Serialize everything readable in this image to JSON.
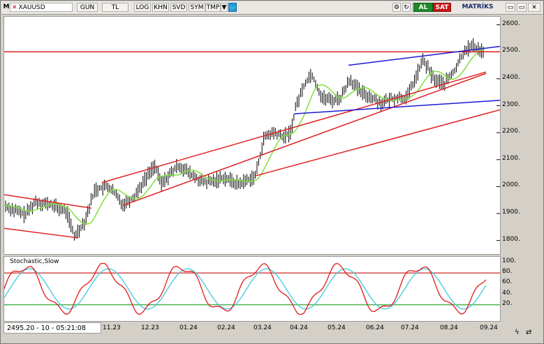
{
  "toolbar": {
    "m": "M",
    "symbol": "XAUUSD",
    "period": "GUN",
    "currency": "TL",
    "scale_log": "LOG",
    "khn": "KHN",
    "svd": "SVD",
    "sym": "SYM",
    "tmp": "TMP",
    "buy": "AL",
    "sell": "SAT",
    "brand": "MATRİKS"
  },
  "price_axis": [
    "2600.",
    "2500.",
    "2400.",
    "2300.",
    "2200.",
    "2100.",
    "2000.",
    "1900.",
    "1800."
  ],
  "indicator": {
    "title": "Stochastic,Slow",
    "axis": [
      "100.",
      "80.",
      "60.",
      "40.",
      "20."
    ]
  },
  "readout": "2495.20 - 10 - 05:21:08",
  "time_axis": [
    "11.23",
    "12.23",
    "01.24",
    "02.24",
    "03.24",
    "04.24",
    "05.24",
    "06.24",
    "07.24",
    "08.24",
    "09.24"
  ],
  "colors": {
    "channel": "#e0201f",
    "trend_blue": "#1a1ad0",
    "ma": "#7ee03a",
    "stoch_k": "#e01a1a",
    "stoch_d": "#40c8e0",
    "level80": "#c81010",
    "level20": "#1a9a1a"
  },
  "chart_data": {
    "type": "line",
    "ylim": [
      1750,
      2630
    ],
    "x": [
      "11.23",
      "12.23",
      "01.24",
      "02.24",
      "03.24",
      "04.24",
      "05.24",
      "06.24",
      "07.24",
      "08.24",
      "09.24"
    ],
    "series": [
      {
        "values": [
          1980,
          2040,
          2050,
          2030,
          2180,
          2350,
          2340,
          2330,
          2420,
          2450,
          2500
        ]
      }
    ],
    "last_price": 2495.2
  }
}
